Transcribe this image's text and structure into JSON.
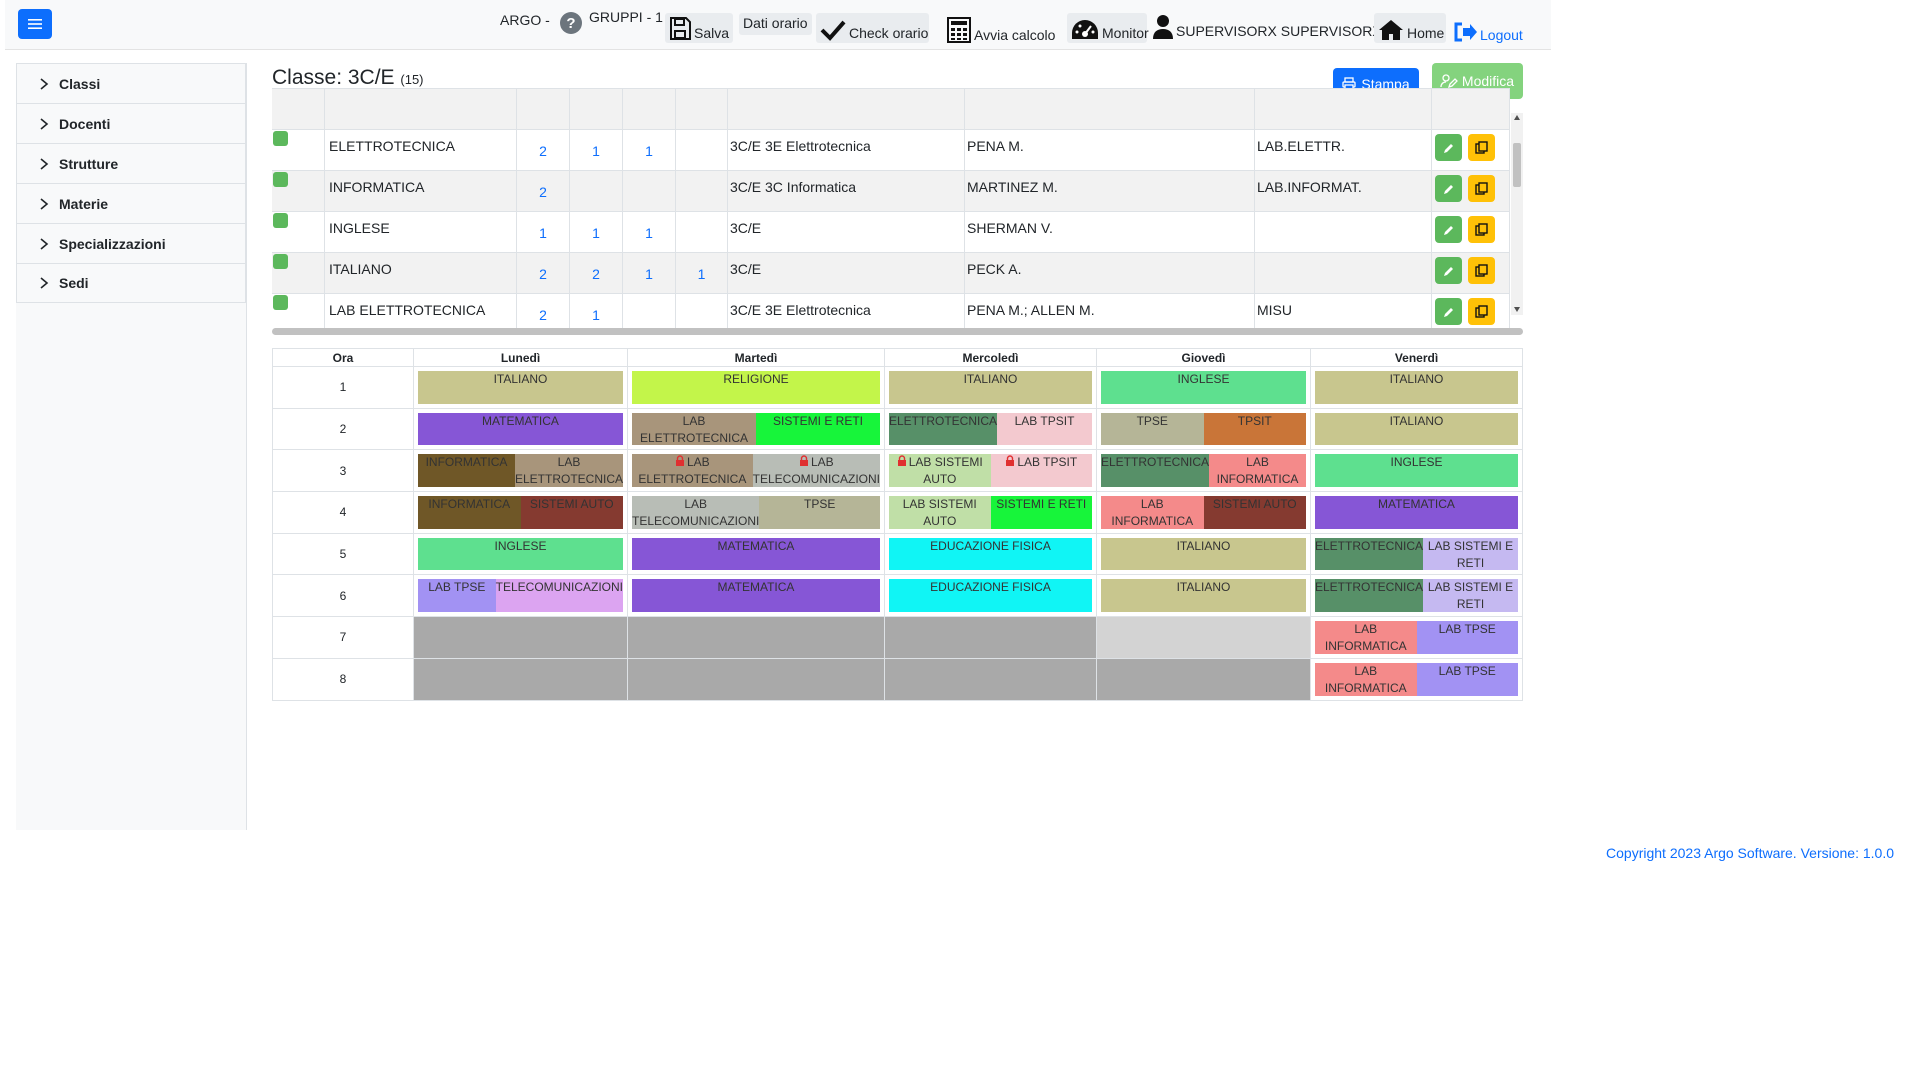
{
  "nav": {
    "app": "ARGO -",
    "gruppi": "GRUPPI - 1",
    "salva": "Salva",
    "dati_orario": "Dati orario",
    "check_orario": "Check orario",
    "avvia_calcolo": "Avvia calcolo",
    "monitor": "Monitor",
    "user": "SUPERVISORX SUPERVISORX",
    "home": "Home",
    "logout": "Logout"
  },
  "sidebar": {
    "items": [
      {
        "label": "Classi"
      },
      {
        "label": "Docenti"
      },
      {
        "label": "Strutture"
      },
      {
        "label": "Materie"
      },
      {
        "label": "Specializzazioni"
      },
      {
        "label": "Sedi"
      }
    ]
  },
  "page": {
    "title": "Classe: 3C/E",
    "count": "(15)",
    "stampa": "Stampa",
    "modifica": "Modifica"
  },
  "subjects": [
    {
      "name": "ELETTROTECNICA",
      "n1": "2",
      "n2": "1",
      "n3": "1",
      "n4": "",
      "classi": "3C/E 3E Elettrotecnica",
      "docenti": "PENA M.",
      "aula": "LAB.ELETTR."
    },
    {
      "name": "INFORMATICA",
      "n1": "2",
      "n2": "",
      "n3": "",
      "n4": "",
      "classi": "3C/E 3C Informatica",
      "docenti": "MARTINEZ M.",
      "aula": "LAB.INFORMAT."
    },
    {
      "name": "INGLESE",
      "n1": "1",
      "n2": "1",
      "n3": "1",
      "n4": "",
      "classi": "3C/E",
      "docenti": "SHERMAN V.",
      "aula": ""
    },
    {
      "name": "ITALIANO",
      "n1": "2",
      "n2": "2",
      "n3": "1",
      "n4": "1",
      "classi": "3C/E",
      "docenti": "PECK A.",
      "aula": ""
    },
    {
      "name": "LAB ELETTROTECNICA",
      "n1": "2",
      "n2": "1",
      "n3": "",
      "n4": "",
      "classi": "3C/E 3E Elettrotecnica",
      "docenti": "PENA M.; ALLEN M.",
      "aula": "MISU"
    }
  ],
  "schedule": {
    "headers": {
      "ora": "Ora",
      "days": [
        "Lunedì",
        "Martedì",
        "Mercoledì",
        "Giovedì",
        "Venerdì"
      ]
    },
    "hours": [
      "1",
      "2",
      "3",
      "4",
      "5",
      "6",
      "7",
      "8"
    ],
    "rows": [
      [
        [
          {
            "t": "ITALIANO",
            "c": "#c8c68e"
          }
        ],
        [
          {
            "t": "RELIGIONE",
            "c": "#c3f54a"
          }
        ],
        [
          {
            "t": "ITALIANO",
            "c": "#c8c68e"
          }
        ],
        [
          {
            "t": "INGLESE",
            "c": "#5ee08f"
          }
        ],
        [
          {
            "t": "ITALIANO",
            "c": "#c8c68e"
          }
        ]
      ],
      [
        [
          {
            "t": "MATEMATICA",
            "c": "#8656d6"
          }
        ],
        [
          {
            "t": "LAB ELETTROTECNICA",
            "c": "#a8957b"
          },
          {
            "t": "SISTEMI E RETI",
            "c": "#17f53a"
          }
        ],
        [
          {
            "t": "ELETTROTECNICA",
            "c": "#579068"
          },
          {
            "t": "LAB TPSIT",
            "c": "#f3c9cf"
          }
        ],
        [
          {
            "t": "TPSE",
            "c": "#b5b597"
          },
          {
            "t": "TPSIT",
            "c": "#c97538"
          }
        ],
        [
          {
            "t": "ITALIANO",
            "c": "#c8c68e"
          }
        ]
      ],
      [
        [
          {
            "t": "INFORMATICA",
            "c": "#6f5727"
          },
          {
            "t": "LAB ELETTROTECNICA",
            "c": "#a8957b"
          }
        ],
        [
          {
            "t": "LAB ELETTROTECNICA",
            "c": "#a8957b",
            "lock": true
          },
          {
            "t": "LAB TELECOMUNICAZIONI",
            "c": "#b8bdb6",
            "lock": true
          }
        ],
        [
          {
            "t": "LAB SISTEMI AUTO",
            "c": "#c0dfa7",
            "lock": true
          },
          {
            "t": "LAB TPSIT",
            "c": "#f3c9cf",
            "lock": true
          }
        ],
        [
          {
            "t": "ELETTROTECNICA",
            "c": "#579068"
          },
          {
            "t": "LAB INFORMATICA",
            "c": "#f48a8a"
          }
        ],
        [
          {
            "t": "INGLESE",
            "c": "#5ee08f"
          }
        ]
      ],
      [
        [
          {
            "t": "INFORMATICA",
            "c": "#6f5727"
          },
          {
            "t": "SISTEMI AUTO",
            "c": "#853a30"
          }
        ],
        [
          {
            "t": "LAB TELECOMUNICAZIONI",
            "c": "#b8bdb6"
          },
          {
            "t": "TPSE",
            "c": "#b5b597"
          }
        ],
        [
          {
            "t": "LAB SISTEMI AUTO",
            "c": "#c0dfa7"
          },
          {
            "t": "SISTEMI E RETI",
            "c": "#17f53a"
          }
        ],
        [
          {
            "t": "LAB INFORMATICA",
            "c": "#f48a8a"
          },
          {
            "t": "SISTEMI AUTO",
            "c": "#853a30"
          }
        ],
        [
          {
            "t": "MATEMATICA",
            "c": "#8656d6"
          }
        ]
      ],
      [
        [
          {
            "t": "INGLESE",
            "c": "#5ee08f"
          }
        ],
        [
          {
            "t": "MATEMATICA",
            "c": "#8656d6"
          }
        ],
        [
          {
            "t": "EDUCAZIONE FISICA",
            "c": "#10f5f5"
          }
        ],
        [
          {
            "t": "ITALIANO",
            "c": "#c8c68e"
          }
        ],
        [
          {
            "t": "ELETTROTECNICA",
            "c": "#579068"
          },
          {
            "t": "LAB SISTEMI E RETI",
            "c": "#c5b9f1"
          }
        ]
      ],
      [
        [
          {
            "t": "LAB TPSE",
            "c": "#a292f3"
          },
          {
            "t": "TELECOMUNICAZIONI",
            "c": "#dca4f1"
          }
        ],
        [
          {
            "t": "MATEMATICA",
            "c": "#8656d6"
          }
        ],
        [
          {
            "t": "EDUCAZIONE FISICA",
            "c": "#10f5f5"
          }
        ],
        [
          {
            "t": "ITALIANO",
            "c": "#c8c68e"
          }
        ],
        [
          {
            "t": "ELETTROTECNICA",
            "c": "#579068"
          },
          {
            "t": "LAB SISTEMI E RETI",
            "c": "#c5b9f1"
          }
        ]
      ],
      [
        [
          "gray"
        ],
        [
          "gray"
        ],
        [
          "gray"
        ],
        [
          "lgray"
        ],
        [
          {
            "t": "LAB INFORMATICA",
            "c": "#f48a8a"
          },
          {
            "t": "LAB TPSE",
            "c": "#a292f3"
          }
        ]
      ],
      [
        [
          "gray"
        ],
        [
          "gray"
        ],
        [
          "gray"
        ],
        [
          "gray"
        ],
        [
          {
            "t": "LAB INFORMATICA",
            "c": "#f48a8a"
          },
          {
            "t": "LAB TPSE",
            "c": "#a292f3"
          }
        ]
      ]
    ]
  },
  "footer": {
    "copyright": "Copyright 2023 Argo Software. Versione: 1.0.0"
  },
  "colors": {
    "primary": "#0d6efd",
    "success": "#5cb85c",
    "warning": "#ffc107",
    "modifica": "#84d37e"
  }
}
